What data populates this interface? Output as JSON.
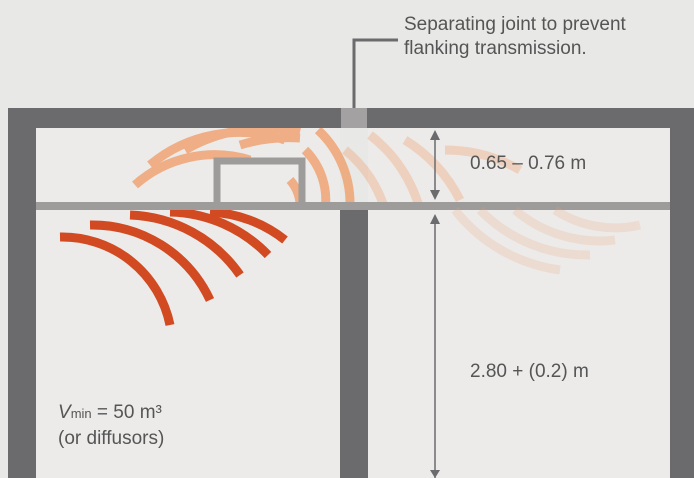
{
  "colors": {
    "background": "#e8e8e6",
    "room_fill": "#ecebea",
    "structure": "#6b6a6c",
    "ceiling": "#9e9c9b",
    "waves_strong": "#d24a22",
    "waves_light": "#f0a06c",
    "text": "#555555"
  },
  "callout": {
    "line1": "Separating joint to prevent",
    "line2": "flanking transmission."
  },
  "labels": {
    "ceiling_height": "0.65 – 0.76 m",
    "room_height": "2.80 + (0.2) m",
    "vol_symbol": "V",
    "vol_subscript": "min",
    "vol_value": " = 50 m³",
    "vol_note": "(or diffusors)"
  },
  "icons": {
    "arrows": "double-headed-arrow-icon",
    "waves": "sound-wave-icon"
  }
}
